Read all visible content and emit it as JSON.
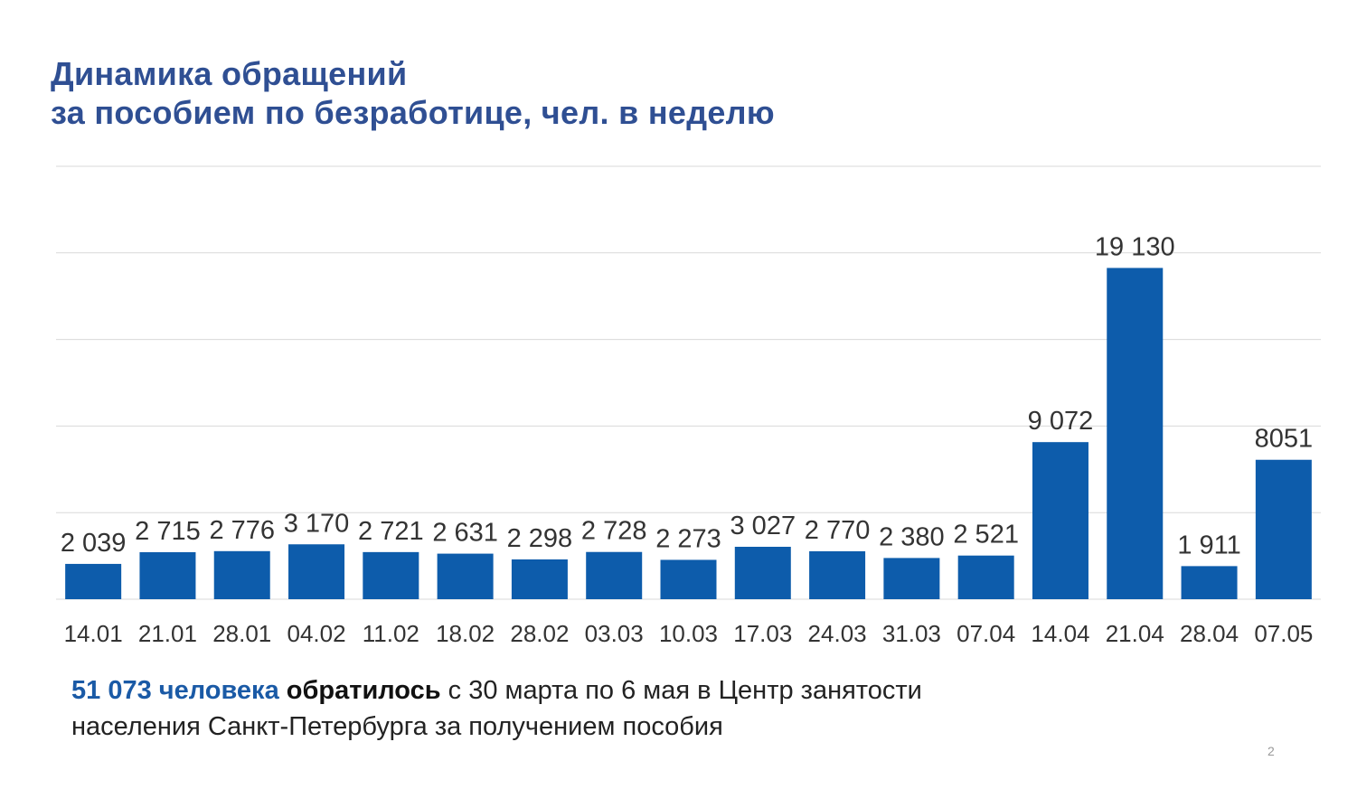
{
  "title": {
    "line1": "Динамика обращений",
    "line2": "за пособием по безработице, чел. в неделю"
  },
  "chart_data": {
    "type": "bar",
    "categories": [
      "14.01",
      "21.01",
      "28.01",
      "04.02",
      "11.02",
      "18.02",
      "28.02",
      "03.03",
      "10.03",
      "17.03",
      "24.03",
      "31.03",
      "07.04",
      "14.04",
      "21.04",
      "28.04",
      "07.05"
    ],
    "values": [
      2039,
      2715,
      2776,
      3170,
      2721,
      2631,
      2298,
      2728,
      2273,
      3027,
      2770,
      2380,
      2521,
      9072,
      19130,
      1911,
      8051
    ],
    "data_labels": [
      "2 039",
      "2 715",
      "2 776",
      "3 170",
      "2 721",
      "2 631",
      "2 298",
      "2 728",
      "2 273",
      "3 027",
      "2 770",
      "2 380",
      "2 521",
      "9 072",
      "19 130",
      "1 911",
      "8051"
    ],
    "ylim": [
      0,
      25000
    ],
    "grid": true,
    "bar_color": "#0d5cab",
    "grid_color": "#d9d9d9"
  },
  "footnote": {
    "accent": "51 073 человека",
    "bold": "обратилось",
    "rest_line1": "с 30 марта по 6 мая в Центр занятости",
    "line2": "населения  Санкт-Петербурга за получением пособия"
  },
  "page_number": "2"
}
